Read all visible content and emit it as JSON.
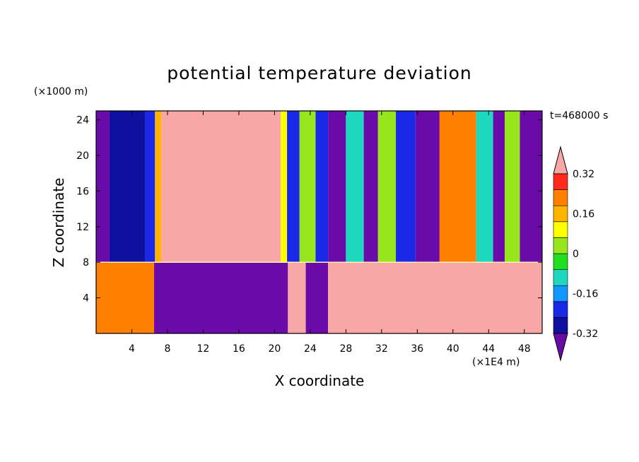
{
  "chart_data": {
    "type": "heatmap",
    "title": "potential temperature deviation",
    "xlabel": "X coordinate",
    "ylabel": "Z coordinate",
    "x_unit": "(×1E4 m)",
    "y_unit": "(×1000 m)",
    "time_label": "t=468000 s",
    "xlim": [
      0,
      50
    ],
    "ylim": [
      0,
      25
    ],
    "x_ticks": [
      4,
      8,
      12,
      16,
      20,
      24,
      28,
      32,
      36,
      40,
      44,
      48
    ],
    "y_ticks": [
      4,
      8,
      12,
      16,
      20,
      24
    ],
    "colorbar": {
      "tick_labels": [
        "0.32",
        "0.16",
        "0",
        "-0.16",
        "-0.32"
      ],
      "tick_values": [
        0.32,
        0.16,
        0,
        -0.16,
        -0.32
      ],
      "levels": [
        -0.4,
        -0.32,
        -0.24,
        -0.16,
        -0.08,
        0,
        0.08,
        0.16,
        0.24,
        0.32,
        0.4
      ],
      "colors": [
        "#6a0aa8",
        "#1010a0",
        "#1a28e8",
        "#1296ff",
        "#1ed9c0",
        "#1fe020",
        "#98e61e",
        "#ffff00",
        "#ffb400",
        "#ff8000",
        "#ff2a1a",
        "#f9a6a6"
      ],
      "extend": "both"
    },
    "inversion_height": 8,
    "upper_columns": [
      {
        "x_start": 0,
        "x_end": 1.5,
        "value": -0.42
      },
      {
        "x_start": 1.5,
        "x_end": 5.5,
        "value": -0.36
      },
      {
        "x_start": 5.5,
        "x_end": 6.6,
        "value": -0.25
      },
      {
        "x_start": 6.6,
        "x_end": 7.3,
        "value": 0.2
      },
      {
        "x_start": 7.3,
        "x_end": 20.7,
        "value": 0.45
      },
      {
        "x_start": 20.7,
        "x_end": 21.4,
        "value": 0.1
      },
      {
        "x_start": 21.4,
        "x_end": 22.8,
        "value": -0.3
      },
      {
        "x_start": 22.8,
        "x_end": 24.6,
        "value": 0.05
      },
      {
        "x_start": 24.6,
        "x_end": 26,
        "value": -0.28
      },
      {
        "x_start": 26,
        "x_end": 28,
        "value": -0.42
      },
      {
        "x_start": 28,
        "x_end": 30,
        "value": -0.12
      },
      {
        "x_start": 30,
        "x_end": 31.6,
        "value": -0.42
      },
      {
        "x_start": 31.6,
        "x_end": 33.6,
        "value": 0.05
      },
      {
        "x_start": 33.6,
        "x_end": 35.8,
        "value": -0.3
      },
      {
        "x_start": 35.8,
        "x_end": 38.5,
        "value": -0.42
      },
      {
        "x_start": 38.5,
        "x_end": 42.6,
        "value": 0.25
      },
      {
        "x_start": 42.6,
        "x_end": 44.5,
        "value": -0.1
      },
      {
        "x_start": 44.5,
        "x_end": 45.8,
        "value": -0.42
      },
      {
        "x_start": 45.8,
        "x_end": 47.5,
        "value": 0.0
      },
      {
        "x_start": 47.5,
        "x_end": 50,
        "value": -0.42
      }
    ],
    "lower_columns": [
      {
        "x_start": 0,
        "x_end": 6.5,
        "value": 0.3
      },
      {
        "x_start": 6.5,
        "x_end": 21.5,
        "value": -0.42
      },
      {
        "x_start": 21.5,
        "x_end": 23.5,
        "value": 0.4
      },
      {
        "x_start": 23.5,
        "x_end": 26,
        "value": -0.42
      },
      {
        "x_start": 26,
        "x_end": 50,
        "value": 0.42
      }
    ]
  }
}
